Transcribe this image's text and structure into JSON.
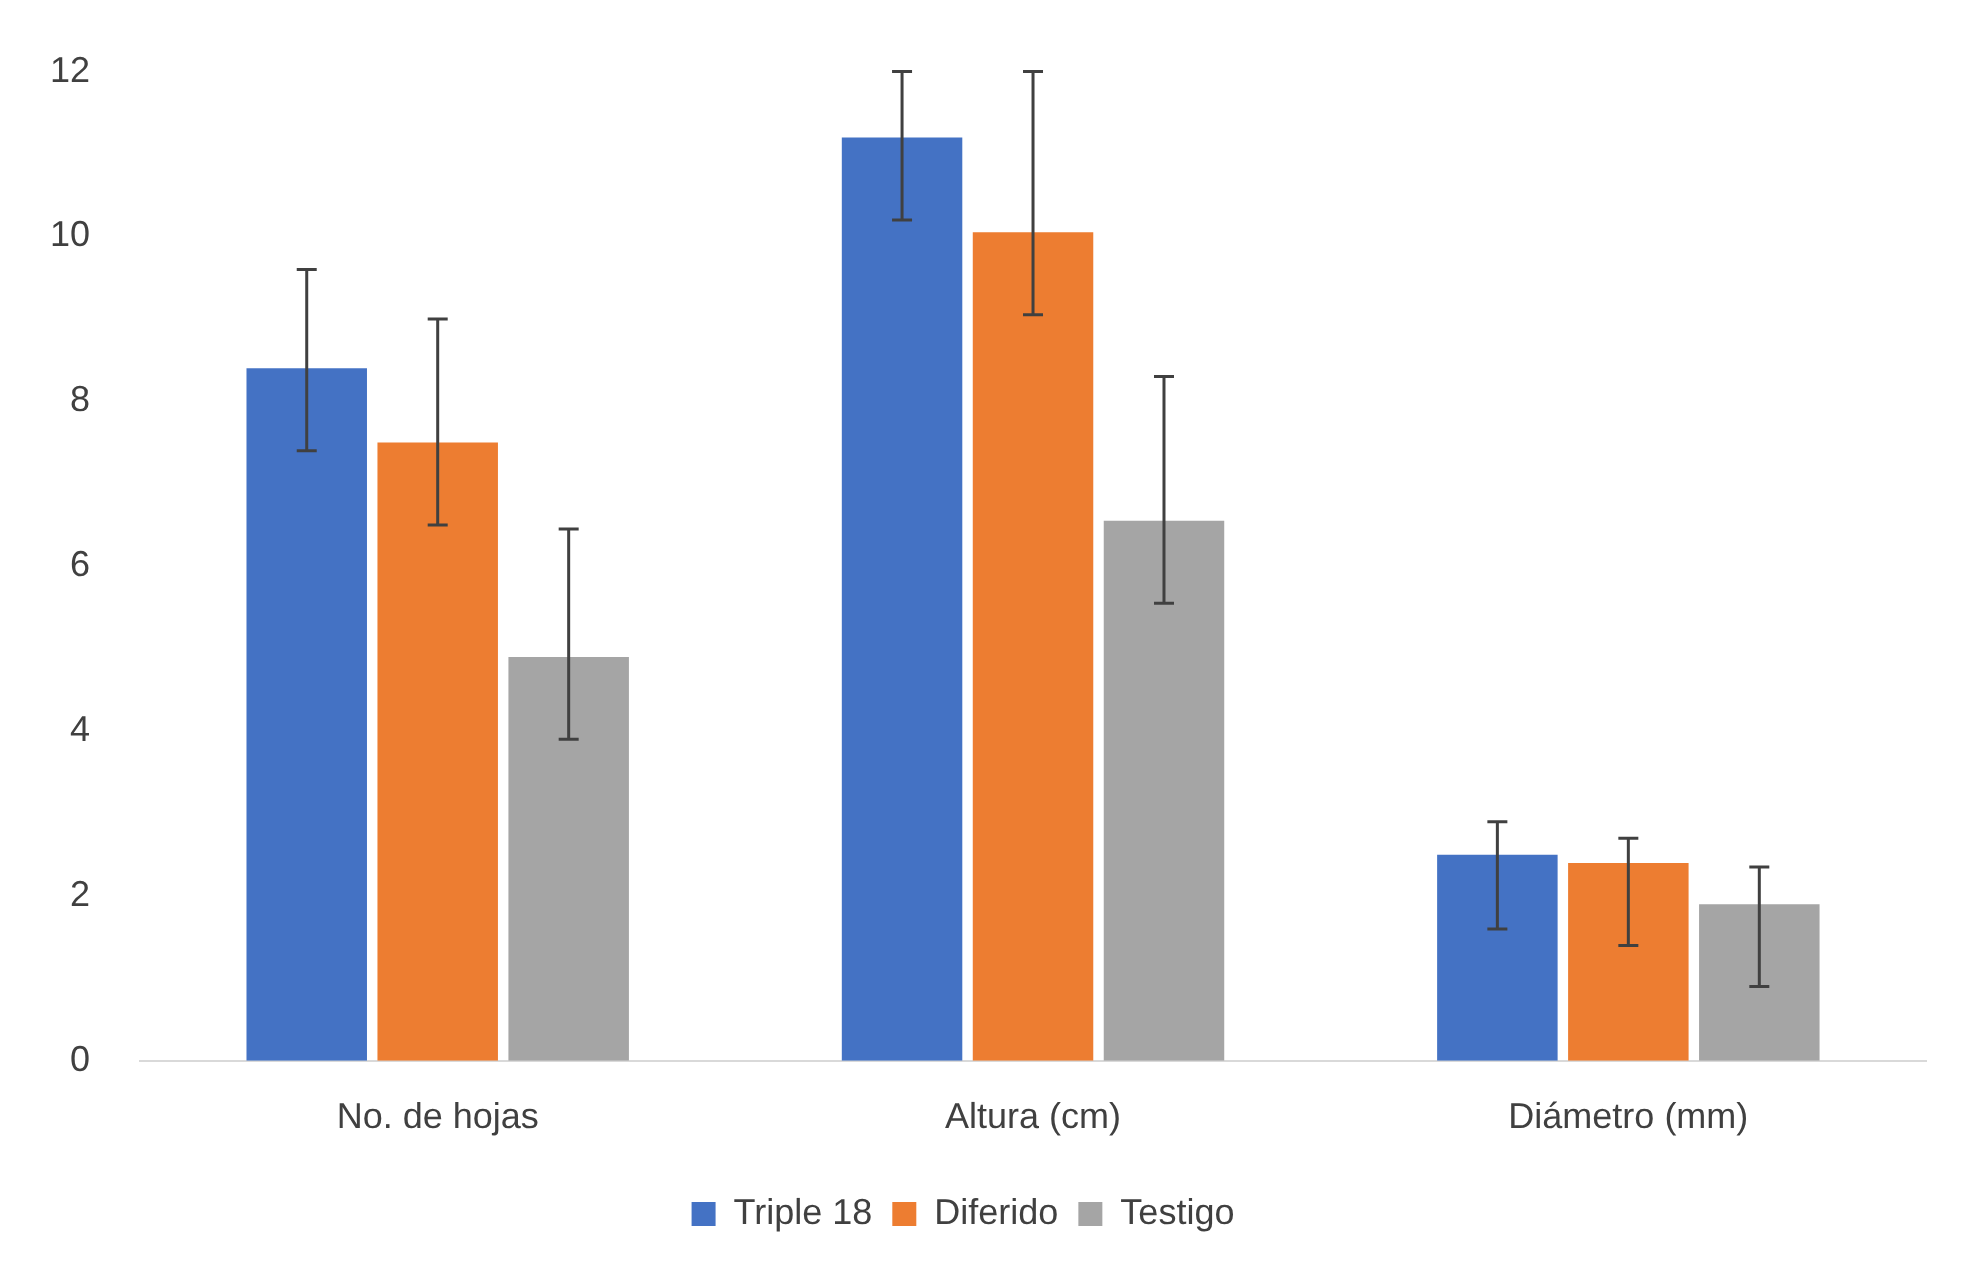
{
  "chart_data": {
    "type": "bar",
    "categories": [
      "No. de hojas",
      "Altura (cm)",
      "Diámetro (mm)"
    ],
    "series": [
      {
        "name": "Triple 18",
        "color": "#4472c4",
        "values": [
          8.4,
          11.2,
          2.5
        ],
        "errors": [
          [
            7.4,
            9.6
          ],
          [
            10.2,
            12
          ],
          [
            1.6,
            2.9
          ]
        ]
      },
      {
        "name": "Diferido",
        "color": "#ed7d31",
        "values": [
          7.5,
          10.05,
          2.4
        ],
        "errors": [
          [
            6.5,
            9.0
          ],
          [
            9.05,
            12
          ],
          [
            1.4,
            2.7
          ]
        ]
      },
      {
        "name": "Testigo",
        "color": "#a5a5a5",
        "values": [
          4.9,
          6.55,
          1.9
        ],
        "errors": [
          [
            3.9,
            6.45
          ],
          [
            5.55,
            8.3
          ],
          [
            0.9,
            2.35
          ]
        ]
      }
    ],
    "ylim": [
      0,
      12
    ],
    "yticks": [
      0,
      2,
      4,
      6,
      8,
      10,
      12
    ],
    "grid": false,
    "legend": "bottom"
  }
}
